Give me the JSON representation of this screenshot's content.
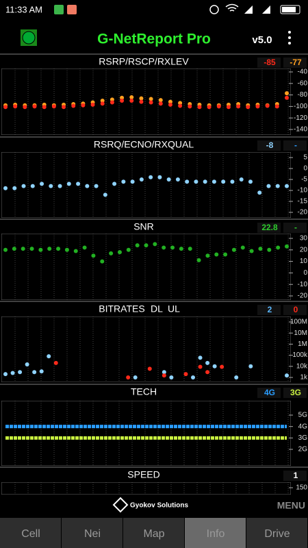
{
  "status_bar": {
    "time": "11:33 AM"
  },
  "header": {
    "title": "G-NetReport Pro",
    "version": "v5.0"
  },
  "panels": [
    {
      "title": "RSRP/RSCP/RXLEV",
      "current": [
        {
          "text": "-85",
          "color": "#ff2a1a"
        },
        {
          "text": "-77",
          "color": "#ffa020"
        }
      ],
      "ylim": [
        -140,
        -40
      ],
      "yticks": [
        -40,
        -60,
        -80,
        -100,
        -120,
        -140
      ],
      "series": [
        {
          "color": "#ffa020",
          "values": [
            -98,
            -97,
            -98,
            -98,
            -97,
            -98,
            -97,
            -96,
            -95,
            -93,
            -90,
            -88,
            -85,
            -84,
            -86,
            -87,
            -89,
            -92,
            -94,
            -96,
            -97,
            -98,
            -98,
            -97,
            -96,
            -98,
            -97,
            -98,
            -96,
            -77
          ]
        },
        {
          "color": "#ff2a1a",
          "values": [
            -101,
            -100,
            -101,
            -100,
            -101,
            -100,
            -101,
            -99,
            -98,
            -97,
            -95,
            -93,
            -90,
            -90,
            -92,
            -93,
            -95,
            -97,
            -99,
            -100,
            -101,
            -101,
            -100,
            -101,
            -100,
            -101,
            -100,
            -99,
            -100,
            -85
          ]
        }
      ]
    },
    {
      "title": "RSRQ/ECNO/RXQUAL",
      "current": [
        {
          "text": "-8",
          "color": "#8fd3ff"
        },
        {
          "text": "-",
          "color": "#2a9dff"
        }
      ],
      "ylim": [
        -20,
        5
      ],
      "yticks": [
        5,
        0,
        -5,
        -10,
        -15,
        -20
      ],
      "series": [
        {
          "color": "#8fd3ff",
          "values": [
            -9,
            -9,
            -8,
            -8,
            -7,
            -8,
            -8,
            -7,
            -7,
            -8,
            -8,
            -12,
            -7,
            -6,
            -6,
            -5,
            -4,
            -4,
            -5,
            -5,
            -6,
            -6,
            -6,
            -6,
            -6,
            -6,
            -5,
            -6,
            -11,
            -8,
            -8,
            -8
          ]
        }
      ]
    },
    {
      "title": "SNR",
      "current": [
        {
          "text": "22.8",
          "color": "#2ecc2e"
        },
        {
          "text": "-",
          "color": "#2ecc2e"
        }
      ],
      "ylim": [
        -20,
        30
      ],
      "yticks": [
        30,
        20,
        10,
        0,
        -10,
        -20
      ],
      "series": [
        {
          "color": "#22b022",
          "values": [
            20,
            21,
            21,
            21,
            20,
            21,
            21,
            20,
            19,
            22,
            15,
            10,
            17,
            18,
            20,
            24,
            24,
            25,
            22,
            22,
            21,
            21,
            11,
            15,
            16,
            16,
            20,
            22,
            19,
            21,
            20,
            22,
            23
          ]
        }
      ]
    },
    {
      "title": "BITRATES",
      "current": [
        {
          "text": "2",
          "color": "#5ab8ff"
        },
        {
          "text": "0",
          "color": "#ff2a1a"
        }
      ],
      "log": true,
      "ylim": [
        1000,
        100000000
      ],
      "yticks": [
        {
          "value": 100000000,
          "label": "100M"
        },
        {
          "value": 10000000,
          "label": "10M"
        },
        {
          "value": 1000000,
          "label": "1M"
        },
        {
          "value": 100000,
          "label": "100k"
        },
        {
          "value": 10000,
          "label": "10k"
        },
        {
          "value": 1000,
          "label": "1k"
        }
      ],
      "series": [
        {
          "name": "DL",
          "color": "#8fd3ff",
          "values": [
            2000,
            2500,
            3000,
            15000,
            3000,
            3500,
            80000,
            null,
            null,
            null,
            null,
            null,
            null,
            null,
            null,
            null,
            null,
            null,
            1000,
            null,
            null,
            null,
            3000,
            1000,
            null,
            null,
            1000,
            60000,
            20000,
            10000,
            null,
            null,
            1000,
            null,
            10000,
            null,
            null,
            null,
            null,
            1500
          ]
        },
        {
          "name": "UL",
          "color": "#ff2a1a",
          "values": [
            null,
            null,
            null,
            null,
            null,
            null,
            null,
            20000,
            null,
            null,
            null,
            null,
            null,
            null,
            null,
            null,
            null,
            1000,
            null,
            null,
            6000,
            null,
            1500,
            null,
            null,
            2000,
            null,
            9000,
            3000,
            null,
            9000,
            null,
            null,
            null,
            null,
            null,
            null,
            null,
            null,
            null
          ]
        }
      ]
    },
    {
      "title": "TECH",
      "current": [
        {
          "text": "4G",
          "color": "#2a9dff"
        },
        {
          "text": "3G",
          "color": "#c8f040"
        }
      ],
      "ylim": [
        2,
        5
      ],
      "yticks": [
        {
          "value": 5,
          "label": "5G"
        },
        {
          "value": 4,
          "label": "4G"
        },
        {
          "value": 3,
          "label": "3G"
        },
        {
          "value": 2,
          "label": "2G"
        }
      ],
      "lines": true,
      "series": [
        {
          "color": "#2a9dff",
          "values": [
            4,
            4,
            4,
            4,
            4,
            4,
            4,
            4,
            4,
            4,
            4,
            4,
            4,
            4,
            4,
            4,
            4,
            4,
            4,
            4
          ]
        },
        {
          "color": "#c8f040",
          "values": [
            3,
            3,
            3,
            3,
            3,
            3,
            3,
            3,
            3,
            3,
            3,
            3,
            3,
            3,
            3,
            3,
            3,
            3,
            3,
            3
          ]
        }
      ]
    },
    {
      "title": "SPEED",
      "current": [
        {
          "text": "1",
          "color": "#ffffff"
        }
      ],
      "ylim": [
        0,
        150
      ],
      "yticks": [
        150
      ],
      "series": []
    }
  ],
  "footer": {
    "brand": "Gyokov Solutions",
    "menu": "MENU"
  },
  "tabs": [
    "Cell",
    "Nei",
    "Map",
    "Info",
    "Drive"
  ],
  "active_tab": 3
}
